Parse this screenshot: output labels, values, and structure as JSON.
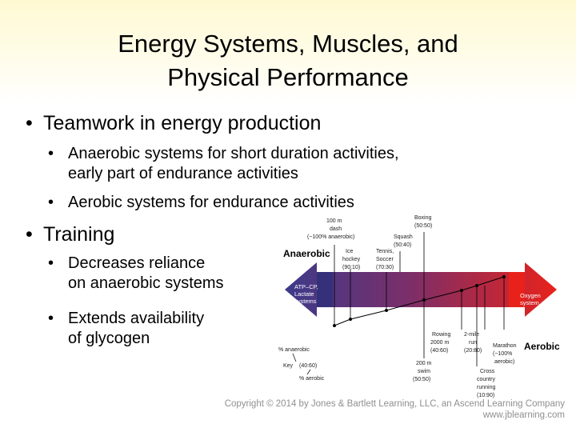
{
  "slide": {
    "title_line1": "Energy Systems, Muscles, and",
    "title_line2": "Physical Performance",
    "bullet_glyph": "•",
    "bullets": [
      {
        "text": "Teamwork in energy production",
        "subs": [
          {
            "lines": [
              "Anaerobic systems for short duration activities,",
              "early part of endurance activities"
            ]
          },
          {
            "lines": [
              "Aerobic systems for endurance activities"
            ]
          }
        ]
      },
      {
        "text": "Training",
        "subs": [
          {
            "lines": [
              "Decreases reliance",
              "on anaerobic systems"
            ]
          },
          {
            "lines": [
              "Extends availability",
              "of glycogen"
            ]
          }
        ]
      }
    ]
  },
  "figure": {
    "left_label": "Anaerobic",
    "right_label": "Aerobic",
    "left_system": [
      "ATP–CP,",
      "Lactate",
      "systems"
    ],
    "right_system": [
      "Oxygen",
      "system"
    ],
    "colors": {
      "anaerobic": "#3d3a8a",
      "aerobic": "#e8221b"
    },
    "top_activities": [
      {
        "lines": [
          "100 m",
          "dash",
          "(~100% anaerobic)"
        ]
      },
      {
        "lines": [
          "Boxing",
          "(50:50)"
        ]
      },
      {
        "lines": [
          "Squash",
          "(50:40)"
        ]
      },
      {
        "lines": [
          "Ice",
          "hockey",
          "(90:10)"
        ]
      },
      {
        "lines": [
          "Tennis,",
          "Soccer",
          "(70:30)"
        ]
      }
    ],
    "bottom_activities": [
      {
        "lines": [
          "Rowing",
          "2000 m",
          "(40:60)"
        ]
      },
      {
        "lines": [
          "2-mile",
          "run",
          "(20:80)"
        ]
      },
      {
        "lines": [
          "Marathon",
          "(~100%",
          "aerobic)"
        ]
      },
      {
        "lines": [
          "200 m",
          "swim",
          "(50:50)"
        ]
      },
      {
        "lines": [
          "Cross",
          "country",
          "running",
          "(10:90)"
        ]
      }
    ],
    "key": {
      "pct_anaerobic": "% anaerobic",
      "key_label": "Key",
      "key_ratio": "(40:60)",
      "pct_aerobic": "% aerobic"
    }
  },
  "footer": {
    "copyright": "Copyright © 2014 by Jones & Bartlett Learning, LLC, an Ascend Learning Company",
    "website": "www.jblearning.com"
  }
}
